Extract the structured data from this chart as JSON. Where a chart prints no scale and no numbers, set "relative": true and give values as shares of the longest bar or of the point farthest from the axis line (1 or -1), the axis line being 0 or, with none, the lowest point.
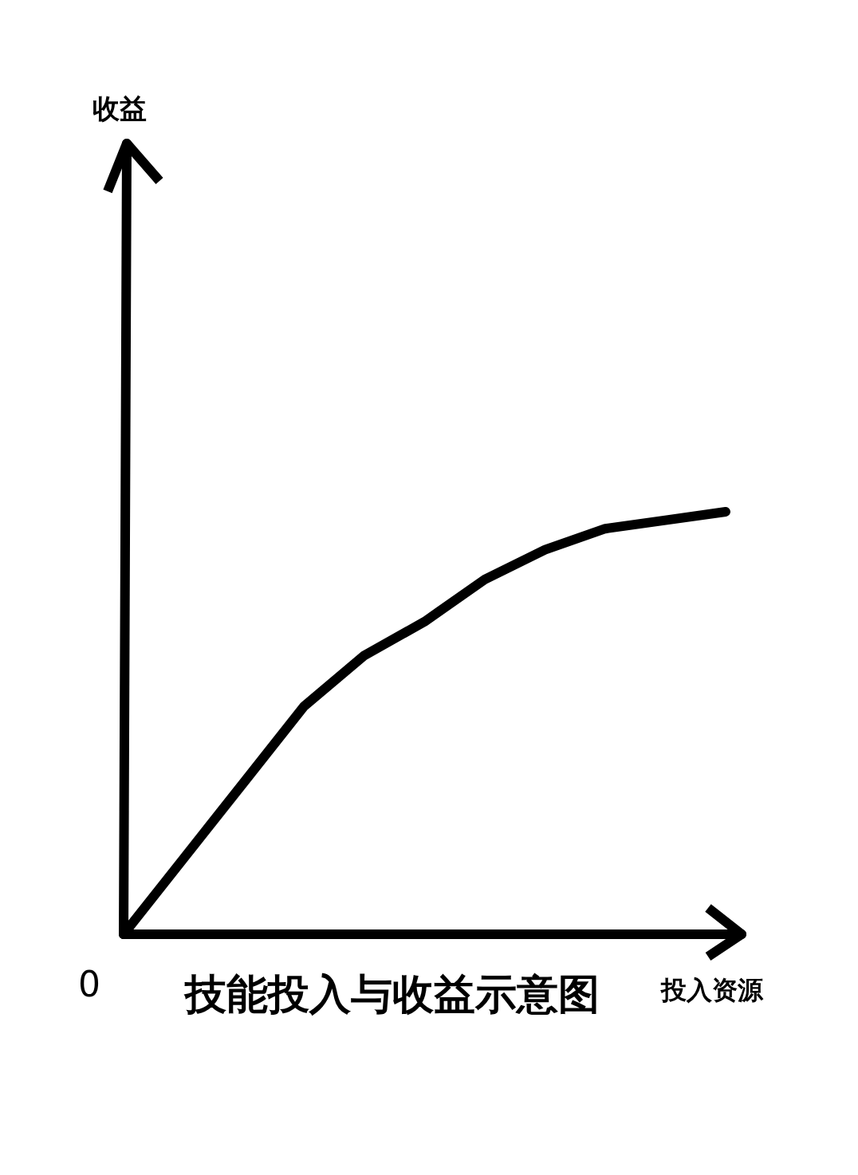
{
  "chart_data": {
    "type": "line",
    "title": "技能投入与收益示意图",
    "xlabel": "投入资源",
    "annotations": [
      "收益",
      "0"
    ],
    "relative": true,
    "categories": [
      null,
      null,
      null,
      null,
      null,
      null,
      null,
      null,
      null,
      null,
      null
    ],
    "series": [
      {
        "color": "#000000",
        "values": [
          0,
          0.18,
          0.36,
          0.54,
          0.66,
          0.74,
          0.84,
          0.91,
          0.96,
          0.98,
          1
        ]
      }
    ]
  }
}
